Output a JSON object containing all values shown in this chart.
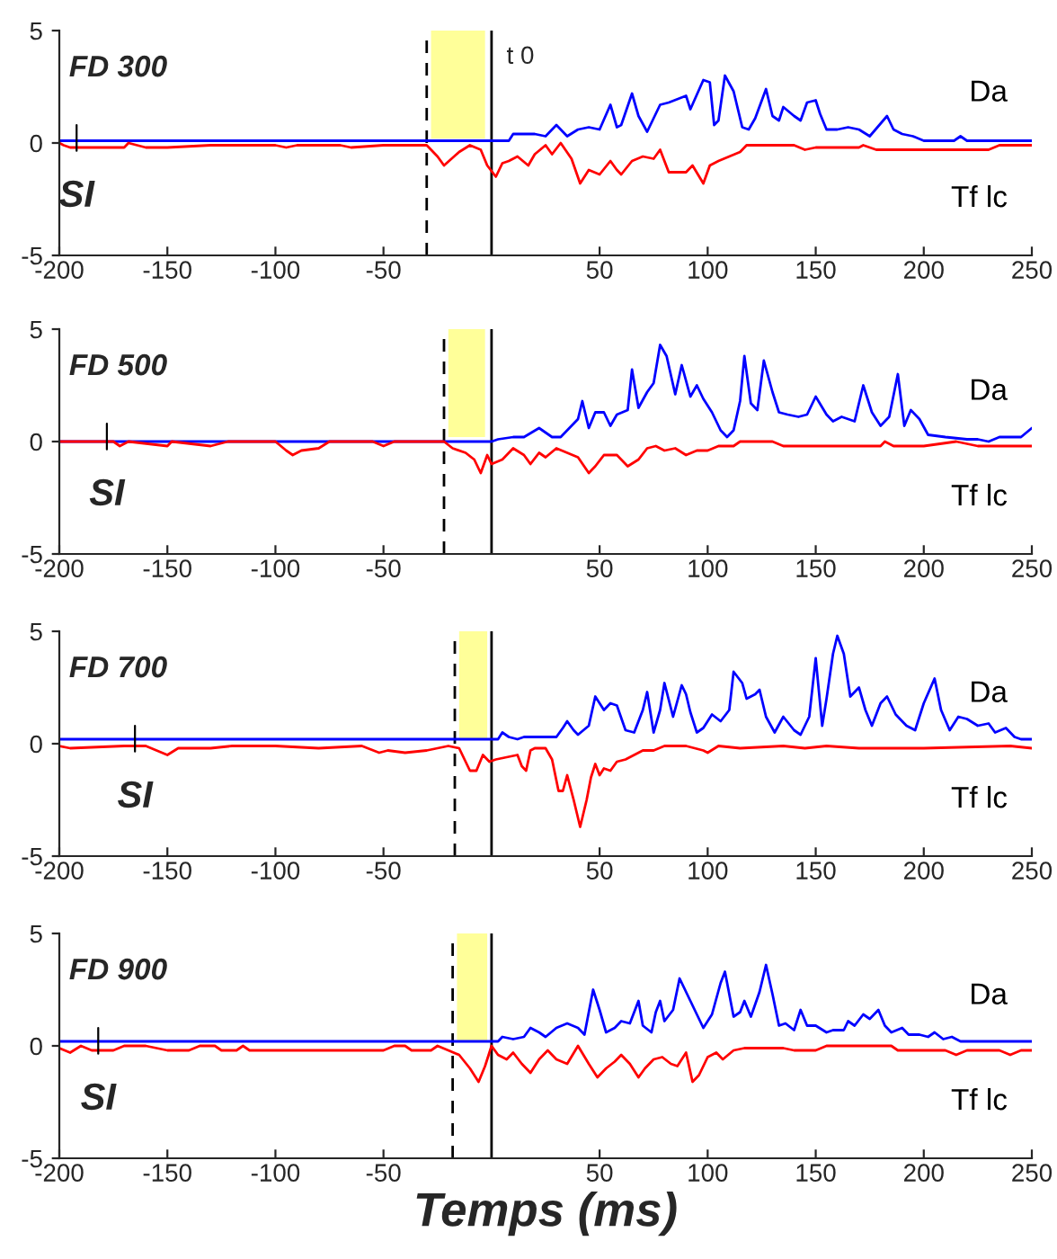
{
  "chart_data": [
    {
      "type": "line",
      "title": "FD 300",
      "xlim": [
        -200,
        250
      ],
      "ylim": [
        -5,
        5
      ],
      "xticks": [
        -200,
        -150,
        -100,
        -50,
        50,
        100,
        150,
        200,
        250
      ],
      "yticks": [
        -5,
        0,
        5
      ],
      "grid": false,
      "ref_lines": [
        {
          "axis": "x",
          "value": 0,
          "label": "t 0",
          "color": "#000000",
          "line_style": "solid"
        },
        {
          "axis": "x",
          "value": -30,
          "color": "#000000",
          "line_style": "dashed"
        }
      ],
      "bands": [
        {
          "axis": "x",
          "from": -28,
          "to": -3,
          "color": "#ffff99"
        }
      ],
      "annotations": [
        {
          "text": "SI",
          "x": -192,
          "y": 0
        }
      ],
      "series": [
        {
          "name": "Da",
          "color": "#0000ff",
          "x": [
            -200,
            8,
            10,
            20,
            25,
            30,
            35,
            40,
            45,
            50,
            55,
            58,
            60,
            65,
            68,
            72,
            78,
            82,
            90,
            92,
            98,
            101,
            103,
            105,
            108,
            112,
            116,
            119,
            122,
            127,
            130,
            133,
            135,
            140,
            143,
            146,
            150,
            152,
            155,
            160,
            165,
            170,
            175,
            183,
            186,
            190,
            195,
            200,
            214,
            217,
            220,
            250
          ],
          "values": [
            0.1,
            0.1,
            0.4,
            0.4,
            0.3,
            0.8,
            0.3,
            0.6,
            0.7,
            0.6,
            1.7,
            0.7,
            0.8,
            2.2,
            1.2,
            0.5,
            1.7,
            1.8,
            2.1,
            1.5,
            2.8,
            2.7,
            0.8,
            1.0,
            3.0,
            2.3,
            0.7,
            0.6,
            1.1,
            2.4,
            1.2,
            1.0,
            1.6,
            1.2,
            1.0,
            1.8,
            1.9,
            1.3,
            0.6,
            0.6,
            0.7,
            0.6,
            0.3,
            1.2,
            0.6,
            0.4,
            0.3,
            0.1,
            0.1,
            0.3,
            0.1,
            0.1
          ]
        },
        {
          "name": "Tf lc",
          "color": "#ff0000",
          "x": [
            -200,
            -198,
            -195,
            -170,
            -168,
            -160,
            -150,
            -130,
            -100,
            -95,
            -90,
            -70,
            -65,
            -50,
            -45,
            -30,
            -25,
            -22,
            -15,
            -10,
            -5,
            -2,
            2,
            5,
            8,
            12,
            17,
            20,
            25,
            28,
            32,
            37,
            41,
            45,
            50,
            55,
            58,
            60,
            65,
            70,
            75,
            78,
            82,
            90,
            93,
            98,
            101,
            105,
            110,
            115,
            118,
            140,
            145,
            150,
            170,
            172,
            178,
            200,
            230,
            235,
            250
          ],
          "values": [
            0,
            -0.1,
            -0.2,
            -0.2,
            0,
            -0.2,
            -0.2,
            -0.1,
            -0.1,
            -0.2,
            -0.1,
            -0.1,
            -0.2,
            -0.1,
            -0.1,
            -0.1,
            -0.6,
            -1.0,
            -0.4,
            -0.1,
            -0.3,
            -1.0,
            -1.5,
            -0.9,
            -0.8,
            -0.6,
            -1.0,
            -0.5,
            -0.1,
            -0.5,
            0.0,
            -0.7,
            -1.8,
            -1.2,
            -1.4,
            -0.8,
            -1.2,
            -1.4,
            -0.8,
            -0.6,
            -0.7,
            -0.3,
            -1.3,
            -1.3,
            -1.0,
            -1.8,
            -1.0,
            -0.8,
            -0.6,
            -0.4,
            -0.1,
            -0.1,
            -0.3,
            -0.2,
            -0.2,
            -0.1,
            -0.3,
            -0.3,
            -0.3,
            -0.1,
            -0.1
          ]
        }
      ]
    },
    {
      "type": "line",
      "title": "FD 500",
      "xlim": [
        -200,
        250
      ],
      "ylim": [
        -5,
        5
      ],
      "xticks": [
        -200,
        -150,
        -100,
        -50,
        50,
        100,
        150,
        200,
        250
      ],
      "yticks": [
        -5,
        0,
        5
      ],
      "grid": false,
      "ref_lines": [
        {
          "axis": "x",
          "value": 0,
          "color": "#000000",
          "line_style": "solid"
        },
        {
          "axis": "x",
          "value": -22,
          "color": "#000000",
          "line_style": "dashed"
        }
      ],
      "bands": [
        {
          "axis": "x",
          "from": -20,
          "to": -3,
          "color": "#ffff99"
        }
      ],
      "annotations": [
        {
          "text": "SI",
          "x": -178,
          "y": 0
        }
      ],
      "series": [
        {
          "name": "Da",
          "color": "#0000ff",
          "x": [
            -200,
            0,
            3,
            10,
            15,
            22,
            28,
            32,
            37,
            40,
            42,
            45,
            48,
            52,
            55,
            58,
            63,
            65,
            68,
            72,
            75,
            78,
            81,
            85,
            88,
            92,
            95,
            98,
            102,
            106,
            109,
            112,
            115,
            117,
            120,
            123,
            126,
            130,
            133,
            137,
            142,
            146,
            150,
            155,
            158,
            162,
            168,
            172,
            176,
            180,
            184,
            188,
            191,
            194,
            198,
            202,
            210,
            220,
            225,
            230,
            235,
            245,
            250
          ],
          "values": [
            0.0,
            0.0,
            0.1,
            0.2,
            0.2,
            0.6,
            0.2,
            0.2,
            0.7,
            1.0,
            1.8,
            0.6,
            1.3,
            1.3,
            0.7,
            1.2,
            1.4,
            3.2,
            1.5,
            2.2,
            2.6,
            4.3,
            3.8,
            2.1,
            3.4,
            2.0,
            2.5,
            1.9,
            1.3,
            0.5,
            0.2,
            0.5,
            1.8,
            3.8,
            1.7,
            1.4,
            3.6,
            2.2,
            1.3,
            1.2,
            1.1,
            1.2,
            2.0,
            1.2,
            0.9,
            1.1,
            0.9,
            2.5,
            1.3,
            0.7,
            1.1,
            3.0,
            0.7,
            1.4,
            1.0,
            0.3,
            0.2,
            0.1,
            0.1,
            0.0,
            0.2,
            0.2,
            0.6
          ]
        },
        {
          "name": "Tf lc",
          "color": "#ff0000",
          "x": [
            -200,
            -175,
            -172,
            -168,
            -150,
            -148,
            -130,
            -122,
            -100,
            -95,
            -92,
            -88,
            -80,
            -75,
            -55,
            -50,
            -45,
            -22,
            -18,
            -12,
            -8,
            -5,
            -2,
            0,
            5,
            10,
            15,
            18,
            22,
            25,
            30,
            35,
            40,
            45,
            48,
            52,
            58,
            63,
            68,
            72,
            76,
            80,
            85,
            90,
            95,
            100,
            105,
            112,
            115,
            130,
            135,
            180,
            182,
            186,
            200,
            215,
            225,
            250
          ],
          "values": [
            0,
            0,
            -0.2,
            0,
            -0.2,
            0,
            -0.2,
            0,
            0,
            -0.4,
            -0.6,
            -0.4,
            -0.3,
            0,
            0,
            -0.2,
            0,
            0,
            -0.3,
            -0.5,
            -0.8,
            -1.4,
            -0.6,
            -1.0,
            -0.8,
            -0.3,
            -0.6,
            -1.0,
            -0.5,
            -0.7,
            -0.3,
            -0.5,
            -0.7,
            -1.4,
            -1.1,
            -0.6,
            -0.6,
            -1.1,
            -0.8,
            -0.3,
            -0.2,
            -0.4,
            -0.3,
            -0.6,
            -0.4,
            -0.4,
            -0.2,
            -0.2,
            0,
            0,
            -0.2,
            -0.2,
            0,
            -0.2,
            -0.2,
            0,
            -0.2,
            -0.2
          ]
        }
      ]
    },
    {
      "type": "line",
      "title": "FD 700",
      "xlim": [
        -200,
        250
      ],
      "ylim": [
        -5,
        5
      ],
      "xticks": [
        -200,
        -150,
        -100,
        -50,
        50,
        100,
        150,
        200,
        250
      ],
      "yticks": [
        -5,
        0,
        5
      ],
      "grid": false,
      "ref_lines": [
        {
          "axis": "x",
          "value": 0,
          "color": "#000000",
          "line_style": "solid"
        },
        {
          "axis": "x",
          "value": -17,
          "color": "#000000",
          "line_style": "dashed"
        }
      ],
      "bands": [
        {
          "axis": "x",
          "from": -15,
          "to": -2,
          "color": "#ffff99"
        }
      ],
      "annotations": [
        {
          "text": "SI",
          "x": -165,
          "y": 0
        }
      ],
      "series": [
        {
          "name": "Da",
          "color": "#0000ff",
          "x": [
            -200,
            3,
            5,
            8,
            12,
            15,
            30,
            33,
            35,
            38,
            40,
            45,
            48,
            52,
            55,
            58,
            62,
            66,
            70,
            72,
            75,
            78,
            80,
            84,
            88,
            90,
            92,
            95,
            98,
            102,
            106,
            110,
            112,
            116,
            118,
            122,
            124,
            127,
            131,
            135,
            140,
            143,
            147,
            150,
            153,
            155,
            158,
            160,
            163,
            166,
            170,
            173,
            176,
            180,
            183,
            187,
            192,
            196,
            200,
            205,
            208,
            212,
            216,
            220,
            225,
            230,
            233,
            238,
            242,
            245,
            250
          ],
          "values": [
            0.2,
            0.2,
            0.5,
            0.3,
            0.2,
            0.3,
            0.3,
            0.7,
            1.0,
            0.6,
            0.4,
            0.8,
            2.1,
            1.5,
            1.8,
            1.7,
            0.6,
            0.5,
            1.5,
            2.3,
            0.5,
            1.5,
            2.7,
            1.2,
            2.6,
            2.2,
            1.4,
            0.5,
            0.7,
            1.3,
            1.0,
            1.5,
            3.2,
            2.7,
            2.0,
            2.2,
            2.4,
            1.2,
            0.5,
            1.2,
            0.6,
            0.4,
            1.2,
            3.8,
            0.8,
            2.0,
            4.0,
            4.8,
            4.0,
            2.1,
            2.5,
            1.5,
            0.8,
            1.8,
            2.1,
            1.3,
            0.8,
            0.6,
            1.8,
            2.9,
            1.5,
            0.6,
            1.2,
            1.1,
            0.8,
            0.9,
            0.5,
            0.7,
            0.3,
            0.2,
            0.2
          ]
        },
        {
          "name": "Tf lc",
          "color": "#ff0000",
          "x": [
            -200,
            -195,
            -170,
            -160,
            -155,
            -150,
            -145,
            -130,
            -120,
            -100,
            -80,
            -60,
            -52,
            -48,
            -40,
            -30,
            -20,
            -15,
            -12,
            -10,
            -7,
            -4,
            -1,
            2,
            7,
            12,
            14,
            16,
            18,
            20,
            25,
            28,
            31,
            33,
            35,
            38,
            41,
            44,
            46,
            48,
            50,
            52,
            55,
            58,
            62,
            66,
            70,
            75,
            80,
            90,
            98,
            100,
            105,
            115,
            135,
            145,
            155,
            170,
            200,
            240,
            250
          ],
          "values": [
            -0.1,
            -0.2,
            -0.1,
            -0.1,
            -0.3,
            -0.5,
            -0.2,
            -0.2,
            -0.1,
            -0.1,
            -0.2,
            -0.1,
            -0.4,
            -0.3,
            -0.4,
            -0.3,
            -0.1,
            -0.2,
            -0.8,
            -1.2,
            -1.2,
            -0.5,
            -0.8,
            -0.7,
            -0.6,
            -0.5,
            -1.0,
            -1.2,
            -0.3,
            -0.2,
            -0.2,
            -0.7,
            -2.1,
            -2.1,
            -1.4,
            -2.5,
            -3.7,
            -2.5,
            -1.5,
            -0.9,
            -1.4,
            -1.1,
            -1.2,
            -0.8,
            -0.7,
            -0.5,
            -0.3,
            -0.3,
            -0.1,
            -0.1,
            -0.3,
            -0.4,
            -0.1,
            -0.2,
            -0.1,
            -0.2,
            -0.1,
            -0.2,
            -0.2,
            -0.1,
            -0.2
          ]
        }
      ]
    },
    {
      "type": "line",
      "title": "FD 900",
      "xlabel": "Temps (ms)",
      "xlim": [
        -200,
        250
      ],
      "ylim": [
        -5,
        5
      ],
      "xticks": [
        -200,
        -150,
        -100,
        -50,
        50,
        100,
        150,
        200,
        250
      ],
      "yticks": [
        -5,
        0,
        5
      ],
      "grid": false,
      "ref_lines": [
        {
          "axis": "x",
          "value": 0,
          "color": "#000000",
          "line_style": "solid"
        },
        {
          "axis": "x",
          "value": -18,
          "color": "#000000",
          "line_style": "dashed"
        }
      ],
      "bands": [
        {
          "axis": "x",
          "from": -16,
          "to": -2,
          "color": "#ffff99"
        }
      ],
      "annotations": [
        {
          "text": "SI",
          "x": -182,
          "y": 0
        }
      ],
      "series": [
        {
          "name": "Da",
          "color": "#0000ff",
          "x": [
            -200,
            0,
            3,
            5,
            10,
            15,
            18,
            22,
            25,
            30,
            35,
            40,
            43,
            47,
            50,
            53,
            57,
            60,
            64,
            68,
            70,
            74,
            76,
            78,
            80,
            84,
            87,
            90,
            92,
            95,
            98,
            102,
            106,
            108,
            112,
            115,
            117,
            120,
            124,
            127,
            130,
            133,
            136,
            140,
            143,
            146,
            150,
            155,
            158,
            163,
            165,
            168,
            172,
            175,
            179,
            182,
            185,
            190,
            193,
            198,
            202,
            205,
            209,
            213,
            217,
            250
          ],
          "values": [
            0.2,
            0.2,
            0.2,
            0.4,
            0.3,
            0.4,
            0.8,
            0.6,
            0.4,
            0.8,
            1.0,
            0.8,
            0.5,
            2.5,
            1.6,
            0.6,
            0.8,
            1.1,
            1.0,
            2.0,
            0.9,
            0.6,
            1.5,
            2.0,
            1.1,
            1.6,
            3.0,
            2.4,
            2.0,
            1.4,
            0.8,
            1.4,
            2.8,
            3.3,
            1.3,
            1.5,
            2.0,
            1.3,
            2.4,
            3.6,
            2.3,
            0.9,
            1.0,
            0.7,
            1.6,
            0.9,
            0.9,
            0.6,
            0.7,
            0.7,
            1.1,
            0.9,
            1.4,
            1.2,
            1.6,
            0.9,
            0.6,
            0.8,
            0.5,
            0.5,
            0.4,
            0.6,
            0.3,
            0.4,
            0.2,
            0.2
          ]
        },
        {
          "name": "Tf lc",
          "color": "#ff0000",
          "x": [
            -200,
            -195,
            -190,
            -185,
            -175,
            -170,
            -160,
            -150,
            -140,
            -135,
            -128,
            -125,
            -118,
            -115,
            -112,
            -50,
            -45,
            -40,
            -37,
            -28,
            -25,
            -20,
            -15,
            -10,
            -6,
            -3,
            0,
            3,
            7,
            10,
            14,
            18,
            22,
            26,
            30,
            35,
            40,
            45,
            49,
            53,
            57,
            60,
            64,
            68,
            71,
            75,
            79,
            83,
            86,
            90,
            93,
            96,
            100,
            104,
            107,
            112,
            117,
            135,
            140,
            150,
            155,
            185,
            188,
            210,
            215,
            220,
            235,
            240,
            245,
            250
          ],
          "values": [
            -0.1,
            -0.3,
            0,
            -0.2,
            -0.2,
            0,
            0,
            -0.2,
            -0.2,
            0,
            0,
            -0.2,
            -0.2,
            0,
            -0.2,
            -0.2,
            0,
            0,
            -0.2,
            -0.2,
            0,
            -0.2,
            -0.4,
            -1.0,
            -1.6,
            -0.9,
            0,
            -0.4,
            -0.6,
            -0.3,
            -0.8,
            -1.2,
            -0.6,
            -0.2,
            -0.6,
            -0.8,
            0,
            -0.8,
            -1.4,
            -1.0,
            -0.7,
            -0.4,
            -0.8,
            -1.4,
            -1.0,
            -0.6,
            -0.5,
            -0.8,
            -0.9,
            -0.3,
            -1.6,
            -1.3,
            -0.5,
            -0.3,
            -0.6,
            -0.2,
            -0.1,
            -0.1,
            -0.2,
            -0.2,
            0,
            0,
            -0.2,
            -0.2,
            -0.4,
            -0.2,
            -0.2,
            -0.4,
            -0.2,
            -0.2
          ]
        }
      ]
    }
  ]
}
